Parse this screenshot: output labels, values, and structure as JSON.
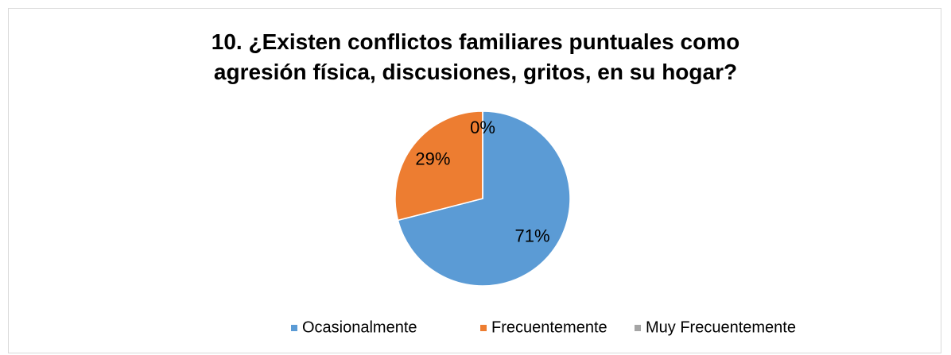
{
  "chart_data": {
    "type": "pie",
    "title": "10. ¿Existen conflictos familiares puntuales como agresión física, discusiones, gritos, en su hogar?",
    "categories": [
      "Ocasionalmente",
      "Frecuentemente",
      "Muy Frecuentemente"
    ],
    "values": [
      71,
      29,
      0
    ],
    "value_labels": [
      "71%",
      "29%",
      "0%"
    ],
    "colors": [
      "#5b9bd5",
      "#ed7d31",
      "#a5a5a5"
    ],
    "legend": "bottom"
  }
}
